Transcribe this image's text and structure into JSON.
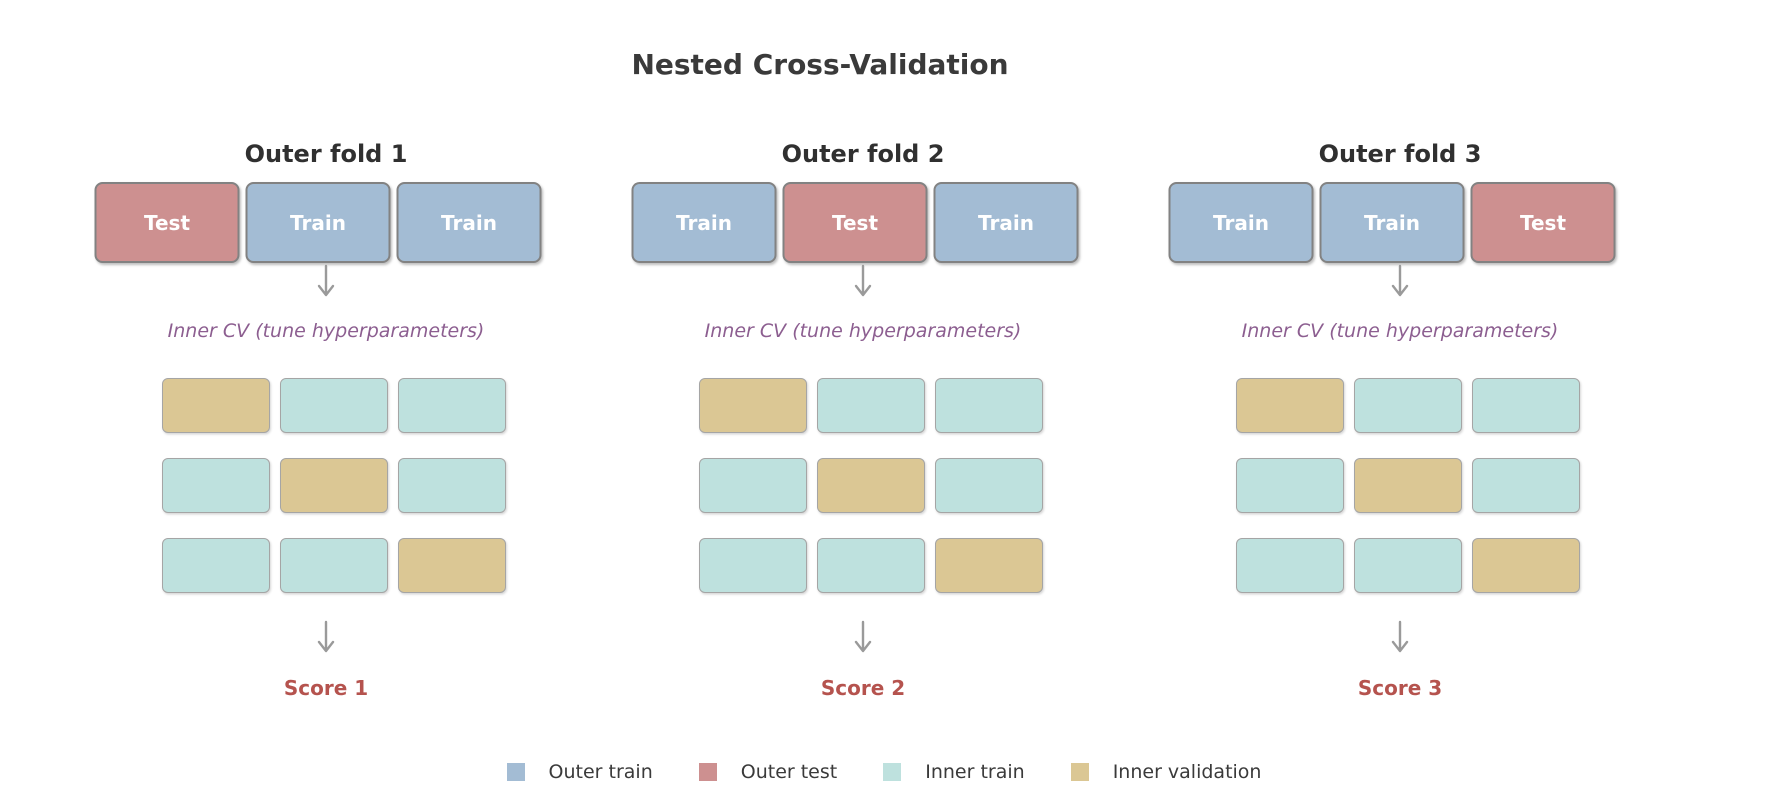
{
  "title": "Nested Cross-Validation",
  "colors": {
    "outer_train": "#a3bcd4",
    "outer_test": "#cd9090",
    "inner_train": "#bee1de",
    "inner_validation": "#dbc794"
  },
  "folds": [
    {
      "title": "Outer fold 1",
      "outer_segments": [
        {
          "label": "Test",
          "role": "outer_test"
        },
        {
          "label": "Train",
          "role": "outer_train"
        },
        {
          "label": "Train",
          "role": "outer_train"
        }
      ],
      "inner_cv_label": "Inner CV (tune hyperparameters)",
      "inner_grid": [
        [
          "inner_validation",
          "inner_train",
          "inner_train"
        ],
        [
          "inner_train",
          "inner_validation",
          "inner_train"
        ],
        [
          "inner_train",
          "inner_train",
          "inner_validation"
        ]
      ],
      "score_label": "Score 1"
    },
    {
      "title": "Outer fold 2",
      "outer_segments": [
        {
          "label": "Train",
          "role": "outer_train"
        },
        {
          "label": "Test",
          "role": "outer_test"
        },
        {
          "label": "Train",
          "role": "outer_train"
        }
      ],
      "inner_cv_label": "Inner CV (tune hyperparameters)",
      "inner_grid": [
        [
          "inner_validation",
          "inner_train",
          "inner_train"
        ],
        [
          "inner_train",
          "inner_validation",
          "inner_train"
        ],
        [
          "inner_train",
          "inner_train",
          "inner_validation"
        ]
      ],
      "score_label": "Score 2"
    },
    {
      "title": "Outer fold 3",
      "outer_segments": [
        {
          "label": "Train",
          "role": "outer_train"
        },
        {
          "label": "Train",
          "role": "outer_train"
        },
        {
          "label": "Test",
          "role": "outer_test"
        }
      ],
      "inner_cv_label": "Inner CV (tune hyperparameters)",
      "inner_grid": [
        [
          "inner_validation",
          "inner_train",
          "inner_train"
        ],
        [
          "inner_train",
          "inner_validation",
          "inner_train"
        ],
        [
          "inner_train",
          "inner_train",
          "inner_validation"
        ]
      ],
      "score_label": "Score 3"
    }
  ],
  "legend": [
    {
      "label": "Outer train",
      "role": "outer_train"
    },
    {
      "label": "Outer test",
      "role": "outer_test"
    },
    {
      "label": "Inner train",
      "role": "inner_train"
    },
    {
      "label": "Inner validation",
      "role": "inner_validation"
    }
  ]
}
